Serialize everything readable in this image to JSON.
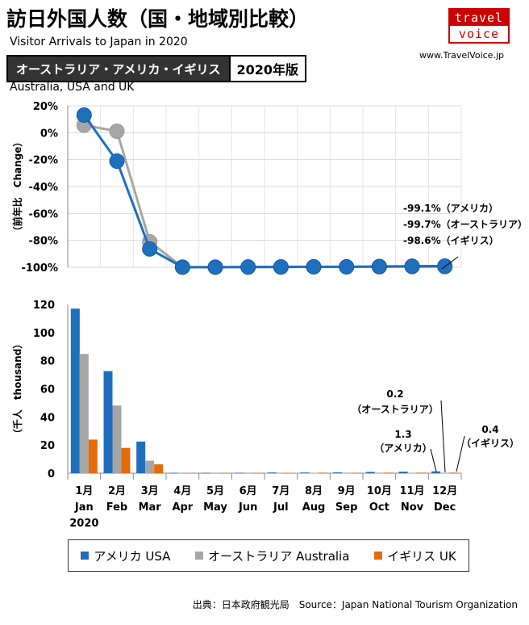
{
  "header": {
    "title_jp": "訪日外国人数（国・地域別比較）",
    "title_en": "Visitor Arrivals to Japan in 2020",
    "banner_countries_jp": "オーストラリア・アメリカ・イギリス",
    "banner_year": "2020年版",
    "countries_en": "Australia, USA and UK"
  },
  "logo": {
    "top": "travel",
    "bottom": "voice"
  },
  "site_url": "www.TravelVoice.jp",
  "colors": {
    "usa": "#1f6fbf",
    "australia": "#a6a6a6",
    "uk": "#e46c0a"
  },
  "chart_data": [
    {
      "type": "line",
      "ylabel": "（前年比　Change）",
      "ylim": [
        -100,
        20
      ],
      "yticks": [
        "20%",
        "0%",
        "-20%",
        "-40%",
        "-60%",
        "-80%",
        "-100%"
      ],
      "x": [
        "1月",
        "2月",
        "3月",
        "4月",
        "5月",
        "6月",
        "7月",
        "8月",
        "9月",
        "10月",
        "11月",
        "12月"
      ],
      "series": [
        {
          "name": "オーストラリア Australia",
          "values": [
            5.6,
            1.1,
            -81.0,
            -99.9,
            -99.9,
            -99.9,
            -99.9,
            -99.7,
            -99.7,
            -99.7,
            -99.6,
            -99.7
          ]
        },
        {
          "name": "アメリカ USA",
          "values": [
            13.1,
            -21.1,
            -86.4,
            -99.9,
            -99.9,
            -99.8,
            -99.7,
            -99.6,
            -99.6,
            -99.4,
            -99.2,
            -99.1
          ]
        }
      ],
      "annotations": [
        "-99.1%（アメリカ）",
        "-99.7%（オーストラリア）",
        "-98.6%（イギリス）"
      ]
    },
    {
      "type": "bar",
      "ylabel": "（千人　thousand）",
      "ylim": [
        0,
        120
      ],
      "yticks": [
        "120",
        "100",
        "80",
        "60",
        "40",
        "20",
        "0"
      ],
      "categories": [
        "1月",
        "2月",
        "3月",
        "4月",
        "5月",
        "6月",
        "7月",
        "8月",
        "9月",
        "10月",
        "11月",
        "12月"
      ],
      "categories_en": [
        "Jan",
        "Feb",
        "Mar",
        "Apr",
        "May",
        "Jun",
        "Jul",
        "Aug",
        "Sep",
        "Oct",
        "Nov",
        "Dec"
      ],
      "year_label": "2020",
      "series": [
        {
          "name": "アメリカ USA",
          "values": [
            117.0,
            72.6,
            22.5,
            0.3,
            0.2,
            0.3,
            0.5,
            0.5,
            0.6,
            0.9,
            1.1,
            1.3
          ]
        },
        {
          "name": "オーストラリア Australia",
          "values": [
            84.8,
            48.1,
            8.9,
            0.1,
            0.1,
            0.1,
            0.1,
            0.2,
            0.1,
            0.1,
            0.2,
            0.2
          ]
        },
        {
          "name": "イギリス UK",
          "values": [
            23.9,
            18.0,
            6.3,
            0.2,
            0.2,
            0.2,
            0.3,
            0.4,
            0.3,
            0.4,
            0.4,
            0.4
          ]
        }
      ],
      "annotations": [
        {
          "value": "0.2",
          "label": "（オーストラリア）"
        },
        {
          "value": "1.3",
          "label": "（アメリカ）"
        },
        {
          "value": "0.4",
          "label": "（イギリス）"
        }
      ]
    }
  ],
  "legend": [
    "アメリカ USA",
    "オーストラリア Australia",
    "イギリス UK"
  ],
  "source": "出典：日本政府観光局　Source：Japan National Tourism Organization"
}
